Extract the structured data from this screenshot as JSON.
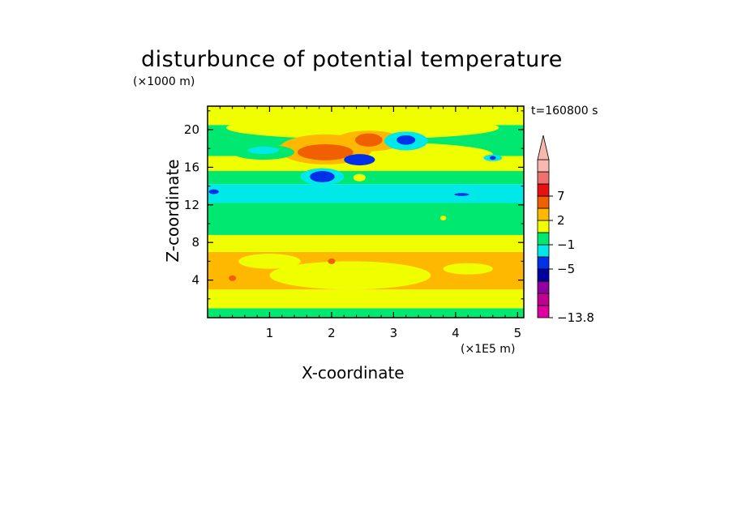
{
  "chart_data": {
    "type": "heatmap",
    "title": "disturbunce of potential temperature",
    "xlabel": "X-coordinate",
    "ylabel": "Z-coordinate",
    "x_unit_label": "(×1E5 m)",
    "y_unit_label": "(×1000 m)",
    "time_label": "t=160800 s",
    "xlim": [
      0,
      5.1
    ],
    "ylim": [
      0,
      22.5
    ],
    "x_ticks": [
      1,
      2,
      3,
      4,
      5
    ],
    "y_ticks": [
      4,
      8,
      12,
      16,
      20
    ],
    "colorbar": {
      "levels": [
        {
          "color": "#e000a0",
          "label": "-13.8"
        },
        {
          "color": "#c00090",
          "label": ""
        },
        {
          "color": "#9000a0",
          "label": ""
        },
        {
          "color": "#0000a0",
          "label": "-5"
        },
        {
          "color": "#0030e8",
          "label": ""
        },
        {
          "color": "#00e8e8",
          "label": "-1"
        },
        {
          "color": "#00e870",
          "label": ""
        },
        {
          "color": "#f0ff00",
          "label": "2"
        },
        {
          "color": "#ffb800",
          "label": ""
        },
        {
          "color": "#f06000",
          "label": "7"
        },
        {
          "color": "#e81010",
          "label": ""
        },
        {
          "color": "#f07070",
          "label": ""
        },
        {
          "color": "#f8b8b0",
          "label": ""
        }
      ],
      "extend": "max"
    },
    "regions": [
      {
        "kind": "band",
        "z": [
          0,
          1.0
        ],
        "color": "#00e870"
      },
      {
        "kind": "band",
        "z": [
          1.0,
          3.0
        ],
        "color": "#f0ff00"
      },
      {
        "kind": "band",
        "z": [
          3.0,
          7.0
        ],
        "color": "#ffb800"
      },
      {
        "kind": "band",
        "z": [
          7.0,
          8.8
        ],
        "color": "#f0ff00"
      },
      {
        "kind": "band",
        "z": [
          8.8,
          12.2
        ],
        "color": "#00e870"
      },
      {
        "kind": "band",
        "z": [
          12.2,
          14.2
        ],
        "color": "#00e8e8"
      },
      {
        "kind": "band",
        "z": [
          14.2,
          15.6
        ],
        "color": "#00e870"
      },
      {
        "kind": "band",
        "z": [
          15.6,
          17.2
        ],
        "color": "#f0ff00"
      },
      {
        "kind": "band",
        "z": [
          17.2,
          20.5
        ],
        "color": "#00e870"
      },
      {
        "kind": "band",
        "z": [
          20.5,
          22.5
        ],
        "color": "#f0ff00"
      },
      {
        "kind": "blob",
        "x": 2.3,
        "z": 4.5,
        "rx": 1.3,
        "rz": 1.5,
        "color": "#f0ff00"
      },
      {
        "kind": "blob",
        "x": 1.0,
        "z": 6.0,
        "rx": 0.5,
        "rz": 0.8,
        "color": "#f0ff00"
      },
      {
        "kind": "blob",
        "x": 4.2,
        "z": 5.2,
        "rx": 0.4,
        "rz": 0.6,
        "color": "#f0ff00"
      },
      {
        "kind": "blob",
        "x": 2.0,
        "z": 6.0,
        "rx": 0.06,
        "rz": 0.3,
        "color": "#f06000"
      },
      {
        "kind": "blob",
        "x": 0.4,
        "z": 4.2,
        "rx": 0.06,
        "rz": 0.3,
        "color": "#f06000"
      },
      {
        "kind": "blob",
        "x": 2.6,
        "z": 17.4,
        "rx": 2.0,
        "rz": 1.3,
        "color": "#f0ff00"
      },
      {
        "kind": "blob",
        "x": 2.5,
        "z": 20.2,
        "rx": 2.2,
        "rz": 1.2,
        "color": "#f0ff00"
      },
      {
        "kind": "blob",
        "x": 1.9,
        "z": 17.9,
        "rx": 0.75,
        "rz": 1.6,
        "color": "#ffb800"
      },
      {
        "kind": "blob",
        "x": 2.6,
        "z": 18.8,
        "rx": 0.55,
        "rz": 1.1,
        "color": "#ffb800"
      },
      {
        "kind": "blob",
        "x": 1.9,
        "z": 17.6,
        "rx": 0.45,
        "rz": 0.85,
        "color": "#f06000"
      },
      {
        "kind": "blob",
        "x": 2.6,
        "z": 18.9,
        "rx": 0.22,
        "rz": 0.7,
        "color": "#f06000"
      },
      {
        "kind": "blob",
        "x": 0.9,
        "z": 17.6,
        "rx": 0.5,
        "rz": 0.8,
        "color": "#00e870"
      },
      {
        "kind": "blob",
        "x": 3.2,
        "z": 18.8,
        "rx": 0.35,
        "rz": 1.0,
        "color": "#00e8e8"
      },
      {
        "kind": "blob",
        "x": 3.2,
        "z": 18.9,
        "rx": 0.15,
        "rz": 0.5,
        "color": "#0030e8"
      },
      {
        "kind": "blob",
        "x": 0.9,
        "z": 17.8,
        "rx": 0.25,
        "rz": 0.4,
        "color": "#00e8e8"
      },
      {
        "kind": "blob",
        "x": 2.45,
        "z": 16.8,
        "rx": 0.25,
        "rz": 0.6,
        "color": "#0030e8"
      },
      {
        "kind": "blob",
        "x": 1.85,
        "z": 15.0,
        "rx": 0.35,
        "rz": 0.9,
        "color": "#00e8e8"
      },
      {
        "kind": "blob",
        "x": 1.85,
        "z": 15.0,
        "rx": 0.2,
        "rz": 0.6,
        "color": "#0030e8"
      },
      {
        "kind": "blob",
        "x": 2.45,
        "z": 14.9,
        "rx": 0.1,
        "rz": 0.4,
        "color": "#f0ff00"
      },
      {
        "kind": "blob",
        "x": 4.6,
        "z": 17.0,
        "rx": 0.15,
        "rz": 0.35,
        "color": "#00e8e8"
      },
      {
        "kind": "blob",
        "x": 4.6,
        "z": 17.0,
        "rx": 0.05,
        "rz": 0.2,
        "color": "#0030e8"
      },
      {
        "kind": "blob",
        "x": 0.1,
        "z": 13.4,
        "rx": 0.08,
        "rz": 0.25,
        "color": "#0030e8"
      },
      {
        "kind": "blob",
        "x": 4.1,
        "z": 13.1,
        "rx": 0.12,
        "rz": 0.15,
        "color": "#0030e8"
      },
      {
        "kind": "blob",
        "x": 3.8,
        "z": 10.6,
        "rx": 0.05,
        "rz": 0.25,
        "color": "#f0ff00"
      }
    ]
  }
}
